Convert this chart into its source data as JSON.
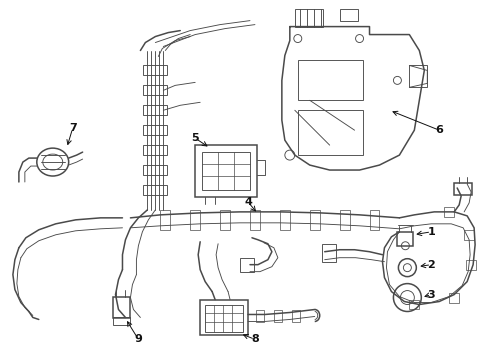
{
  "bg_color": "#ffffff",
  "line_color": "#4a4a4a",
  "label_color": "#111111",
  "figsize": [
    4.9,
    3.6
  ],
  "dpi": 100,
  "lw_main": 1.1,
  "lw_thin": 0.65,
  "lw_cable": 1.0
}
